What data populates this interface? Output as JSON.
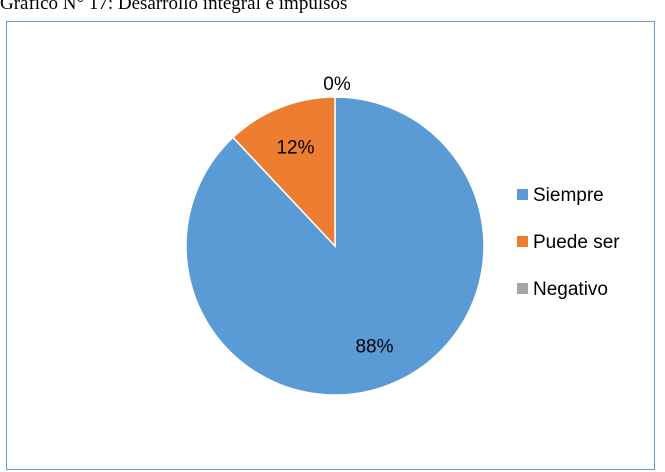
{
  "caption": "Gráfico N° 17: Desarrollo integral e impulsos",
  "chart_data": {
    "type": "pie",
    "title": "",
    "categories": [
      "Siempre",
      "Puede ser",
      "Negativo"
    ],
    "values": [
      88,
      12,
      0
    ],
    "labels": [
      "88%",
      "12%",
      "0%"
    ],
    "colors": [
      "#5b9bd5",
      "#ed7d31",
      "#a5a5a5"
    ],
    "legend_position": "right"
  }
}
